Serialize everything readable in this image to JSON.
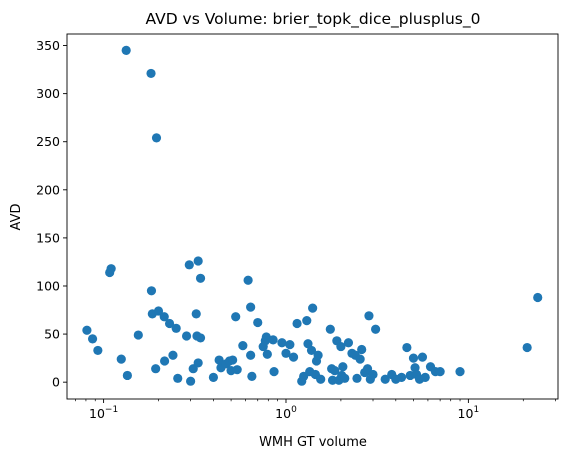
{
  "chart_data": {
    "type": "scatter",
    "title": "AVD vs Volume: brier_topk_dice_plusplus_0",
    "xlabel": "WMH GT volume",
    "ylabel": "AVD",
    "xscale": "log",
    "xlim": [
      0.063,
      31
    ],
    "ylim": [
      -17.5,
      362
    ],
    "grid": false,
    "marker_color": "#1f77b4",
    "x_ticks": [
      {
        "value": 0.1,
        "base": "10",
        "exp": "−1"
      },
      {
        "value": 1,
        "base": "10",
        "exp": "0"
      },
      {
        "value": 10,
        "base": "10",
        "exp": "1"
      }
    ],
    "y_ticks": [
      0,
      50,
      100,
      150,
      200,
      250,
      300,
      350
    ],
    "points": [
      {
        "x": 0.081,
        "y": 54
      },
      {
        "x": 0.087,
        "y": 45
      },
      {
        "x": 0.093,
        "y": 33
      },
      {
        "x": 0.108,
        "y": 114
      },
      {
        "x": 0.11,
        "y": 118
      },
      {
        "x": 0.125,
        "y": 24
      },
      {
        "x": 0.133,
        "y": 345
      },
      {
        "x": 0.135,
        "y": 7
      },
      {
        "x": 0.155,
        "y": 49
      },
      {
        "x": 0.182,
        "y": 321
      },
      {
        "x": 0.183,
        "y": 95
      },
      {
        "x": 0.185,
        "y": 71
      },
      {
        "x": 0.193,
        "y": 14
      },
      {
        "x": 0.195,
        "y": 254
      },
      {
        "x": 0.2,
        "y": 74
      },
      {
        "x": 0.215,
        "y": 68
      },
      {
        "x": 0.216,
        "y": 22
      },
      {
        "x": 0.23,
        "y": 61
      },
      {
        "x": 0.24,
        "y": 28
      },
      {
        "x": 0.25,
        "y": 56
      },
      {
        "x": 0.255,
        "y": 4
      },
      {
        "x": 0.285,
        "y": 48
      },
      {
        "x": 0.295,
        "y": 122
      },
      {
        "x": 0.3,
        "y": 1
      },
      {
        "x": 0.31,
        "y": 14
      },
      {
        "x": 0.322,
        "y": 71
      },
      {
        "x": 0.325,
        "y": 48
      },
      {
        "x": 0.33,
        "y": 126
      },
      {
        "x": 0.33,
        "y": 20
      },
      {
        "x": 0.34,
        "y": 108
      },
      {
        "x": 0.34,
        "y": 46
      },
      {
        "x": 0.4,
        "y": 5
      },
      {
        "x": 0.43,
        "y": 23
      },
      {
        "x": 0.44,
        "y": 15
      },
      {
        "x": 0.47,
        "y": 19
      },
      {
        "x": 0.49,
        "y": 22
      },
      {
        "x": 0.5,
        "y": 12
      },
      {
        "x": 0.51,
        "y": 23
      },
      {
        "x": 0.53,
        "y": 68
      },
      {
        "x": 0.54,
        "y": 13
      },
      {
        "x": 0.58,
        "y": 38
      },
      {
        "x": 0.62,
        "y": 106
      },
      {
        "x": 0.64,
        "y": 78
      },
      {
        "x": 0.64,
        "y": 28
      },
      {
        "x": 0.65,
        "y": 6
      },
      {
        "x": 0.7,
        "y": 62
      },
      {
        "x": 0.75,
        "y": 37
      },
      {
        "x": 0.77,
        "y": 43
      },
      {
        "x": 0.78,
        "y": 47
      },
      {
        "x": 0.79,
        "y": 29
      },
      {
        "x": 0.85,
        "y": 44
      },
      {
        "x": 0.86,
        "y": 11
      },
      {
        "x": 0.95,
        "y": 41
      },
      {
        "x": 1.0,
        "y": 30
      },
      {
        "x": 1.05,
        "y": 39
      },
      {
        "x": 1.1,
        "y": 26
      },
      {
        "x": 1.15,
        "y": 61
      },
      {
        "x": 1.22,
        "y": 1
      },
      {
        "x": 1.25,
        "y": 6
      },
      {
        "x": 1.3,
        "y": 64
      },
      {
        "x": 1.32,
        "y": 40
      },
      {
        "x": 1.35,
        "y": 11
      },
      {
        "x": 1.38,
        "y": 33
      },
      {
        "x": 1.4,
        "y": 77
      },
      {
        "x": 1.45,
        "y": 8
      },
      {
        "x": 1.47,
        "y": 22
      },
      {
        "x": 1.5,
        "y": 28
      },
      {
        "x": 1.55,
        "y": 3
      },
      {
        "x": 1.75,
        "y": 55
      },
      {
        "x": 1.78,
        "y": 14
      },
      {
        "x": 1.8,
        "y": 2
      },
      {
        "x": 1.85,
        "y": 12
      },
      {
        "x": 1.9,
        "y": 43
      },
      {
        "x": 1.95,
        "y": 2
      },
      {
        "x": 2.0,
        "y": 37
      },
      {
        "x": 2.02,
        "y": 7
      },
      {
        "x": 2.05,
        "y": 16
      },
      {
        "x": 2.1,
        "y": 4
      },
      {
        "x": 2.2,
        "y": 41
      },
      {
        "x": 2.3,
        "y": 30
      },
      {
        "x": 2.4,
        "y": 28
      },
      {
        "x": 2.45,
        "y": 4
      },
      {
        "x": 2.55,
        "y": 24
      },
      {
        "x": 2.6,
        "y": 34
      },
      {
        "x": 2.7,
        "y": 10
      },
      {
        "x": 2.8,
        "y": 14
      },
      {
        "x": 2.85,
        "y": 69
      },
      {
        "x": 2.9,
        "y": 3
      },
      {
        "x": 3.0,
        "y": 8
      },
      {
        "x": 3.1,
        "y": 55
      },
      {
        "x": 3.5,
        "y": 3
      },
      {
        "x": 3.8,
        "y": 8
      },
      {
        "x": 4.0,
        "y": 3
      },
      {
        "x": 4.3,
        "y": 5
      },
      {
        "x": 4.6,
        "y": 36
      },
      {
        "x": 4.8,
        "y": 7
      },
      {
        "x": 5.0,
        "y": 25
      },
      {
        "x": 5.1,
        "y": 15
      },
      {
        "x": 5.2,
        "y": 8
      },
      {
        "x": 5.4,
        "y": 3
      },
      {
        "x": 5.6,
        "y": 26
      },
      {
        "x": 5.8,
        "y": 5
      },
      {
        "x": 6.2,
        "y": 16
      },
      {
        "x": 6.6,
        "y": 11
      },
      {
        "x": 7.0,
        "y": 11
      },
      {
        "x": 9.0,
        "y": 11
      },
      {
        "x": 21.0,
        "y": 36
      },
      {
        "x": 24.0,
        "y": 88
      }
    ]
  }
}
